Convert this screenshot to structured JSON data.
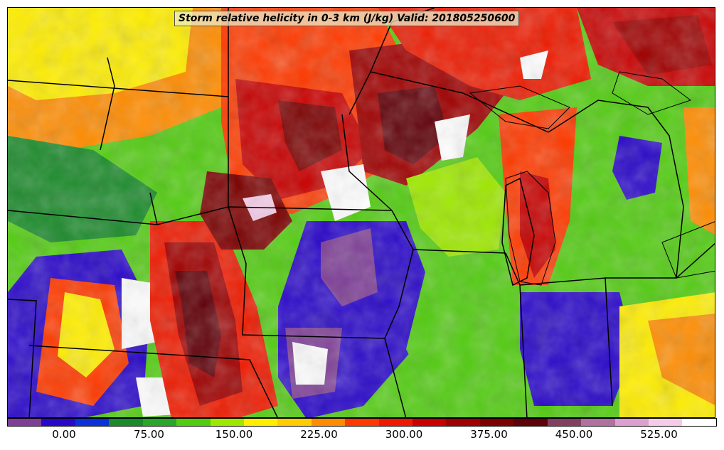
{
  "title": "Storm relative helicity in 0-3 km (J/kg) Valid: 201805250600",
  "colorbar": {
    "colors": [
      "#7e3f96",
      "#2a08c9",
      "#0a32d8",
      "#1a8a2a",
      "#2aa62a",
      "#52cc10",
      "#9ee800",
      "#ffee00",
      "#ffcc00",
      "#ff8c00",
      "#ff3a00",
      "#ee1a00",
      "#c80000",
      "#a00000",
      "#7c0000",
      "#600008",
      "#824060",
      "#b070a0",
      "#dca0d0",
      "#f4cce8",
      "#ffffff"
    ],
    "ticks": [
      "0.00",
      "75.00",
      "150.00",
      "225.00",
      "300.00",
      "375.00",
      "450.00",
      "525.00"
    ]
  },
  "palette": {
    "frame": "#000000",
    "title_bg": "#e8e8c8"
  }
}
